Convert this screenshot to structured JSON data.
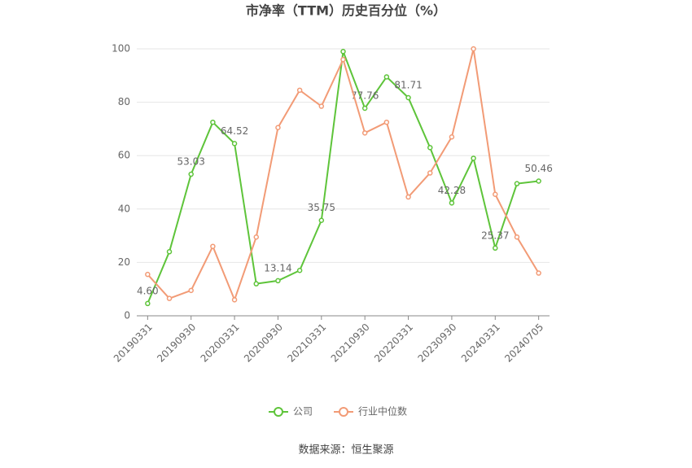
{
  "chart_data": {
    "type": "line",
    "title": "市净率（TTM）历史百分位（%）",
    "categories": [
      "20190331",
      null,
      "20190930",
      null,
      "20200331",
      null,
      "20200930",
      null,
      "20210331",
      null,
      "20210930",
      null,
      "20220331",
      null,
      "20230930",
      null,
      "20240331",
      null,
      "20240705"
    ],
    "series": [
      {
        "name": "公司",
        "color": "#5ec43a",
        "values": [
          4.6,
          24,
          53.03,
          72.5,
          64.52,
          12,
          13.14,
          17,
          35.75,
          99,
          77.76,
          89.5,
          81.71,
          63,
          42.28,
          59,
          25.37,
          49.5,
          50.46
        ],
        "value_labels": [
          "4.60",
          null,
          "53.03",
          null,
          "64.52",
          null,
          "13.14",
          null,
          "35.75",
          null,
          "77.76",
          null,
          "81.71",
          null,
          "42.28",
          null,
          "25.37",
          null,
          "50.46"
        ]
      },
      {
        "name": "行业中位数",
        "color": "#f29b76",
        "values": [
          15.5,
          6.5,
          9.5,
          26,
          6,
          29.5,
          70.5,
          84.5,
          78.5,
          96,
          68.5,
          72.5,
          44.5,
          53.5,
          67,
          100,
          45.5,
          29.5,
          16
        ]
      }
    ],
    "ylim": [
      0,
      100
    ],
    "yticks": [
      0,
      20,
      40,
      60,
      80,
      100
    ],
    "grid": true,
    "legend": "bottom",
    "source": "数据来源：恒生聚源"
  }
}
